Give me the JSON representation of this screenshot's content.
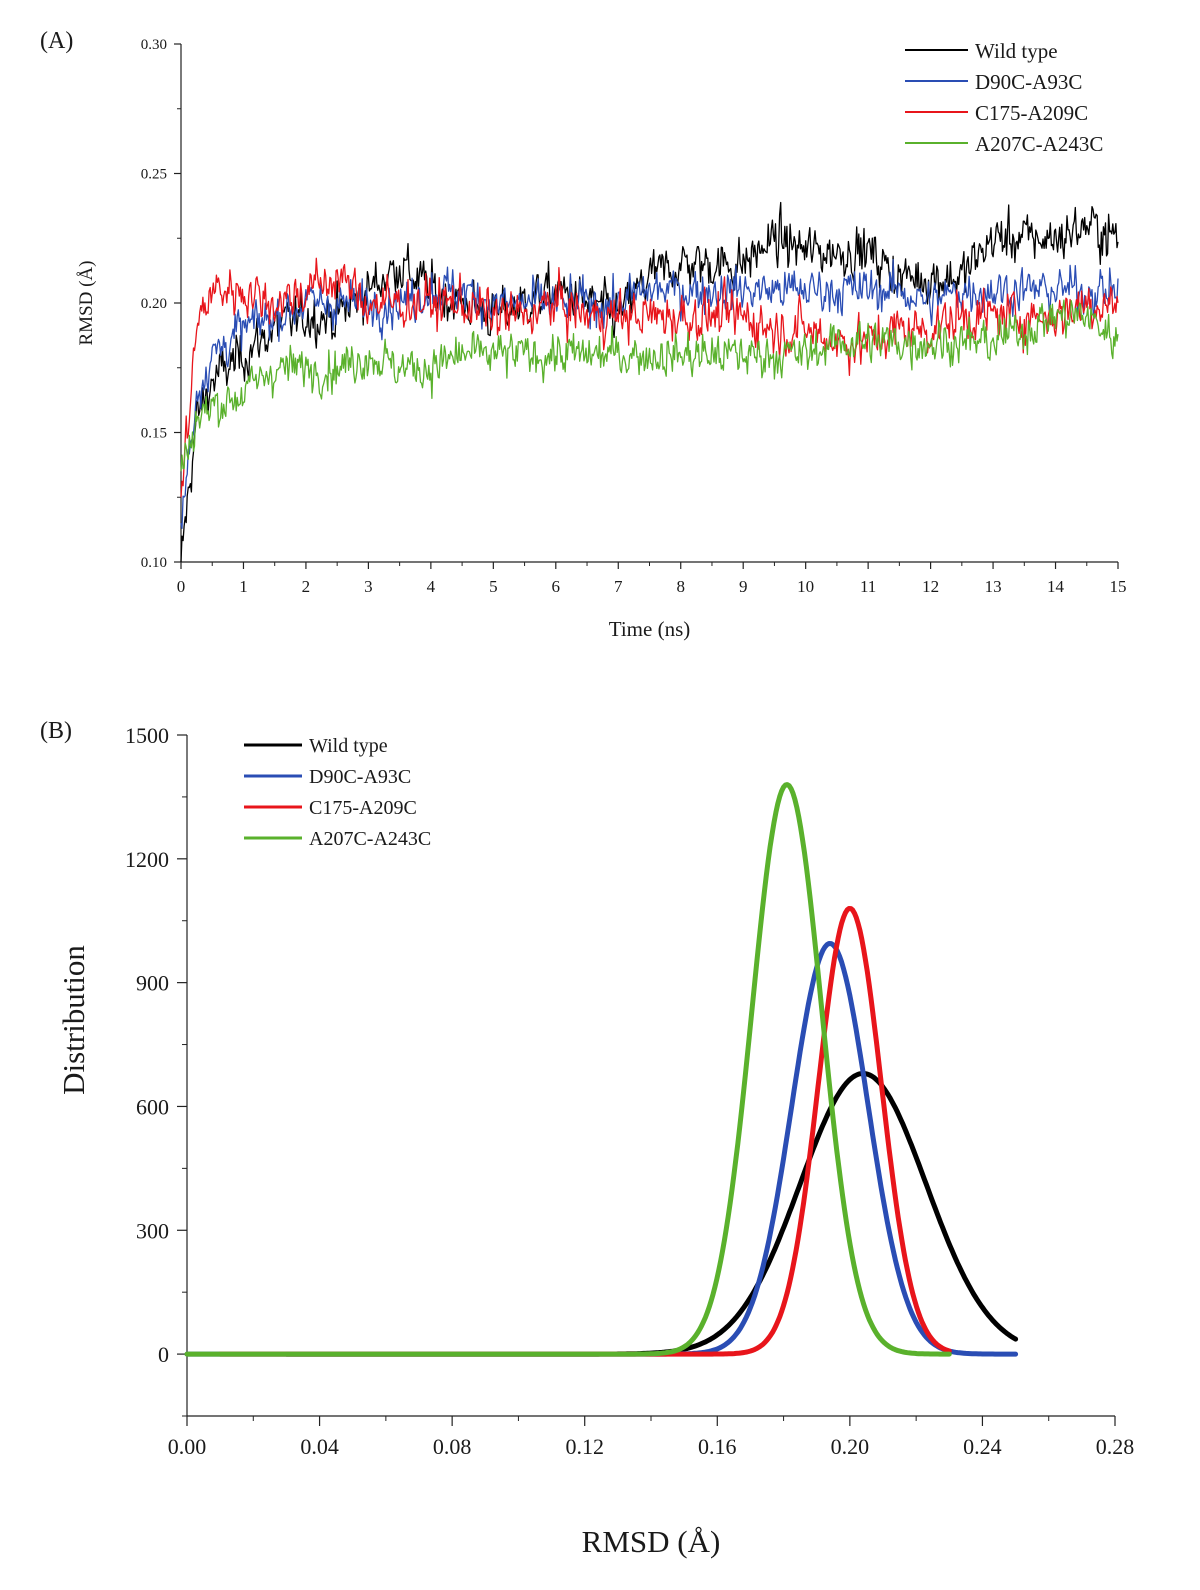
{
  "chart_data": [
    {
      "panel": "(A)",
      "type": "line",
      "title": "",
      "xlabel": "Time (ns)",
      "ylabel": "RMSD (Å)",
      "xlim": [
        0,
        15
      ],
      "ylim": [
        0.1,
        0.3
      ],
      "xticks": [
        0,
        1,
        2,
        3,
        4,
        5,
        6,
        7,
        8,
        9,
        10,
        11,
        12,
        13,
        14,
        15
      ],
      "xtick_labels": [
        "0",
        "1",
        "2",
        "3",
        "4",
        "5",
        "6",
        "7",
        "8",
        "9",
        "10",
        "11",
        "12",
        "13",
        "14",
        "15"
      ],
      "yticks": [
        0.1,
        0.15,
        0.2,
        0.25,
        0.3
      ],
      "ytick_labels": [
        "0.10",
        "0.15",
        "0.20",
        "0.25",
        "0.30"
      ],
      "legend_position": "top-right",
      "grid": false,
      "series": [
        {
          "name": "Wild type",
          "color": "#000000",
          "x": [
            0,
            0.25,
            0.5,
            1,
            1.5,
            2,
            2.5,
            3,
            3.5,
            4,
            4.5,
            5,
            5.5,
            6,
            6.5,
            7,
            7.5,
            8,
            8.5,
            9,
            9.5,
            10,
            10.5,
            11,
            11.5,
            12,
            12.5,
            13,
            13.5,
            14,
            14.5,
            15
          ],
          "values": [
            0.1,
            0.155,
            0.17,
            0.18,
            0.19,
            0.195,
            0.195,
            0.205,
            0.215,
            0.205,
            0.2,
            0.195,
            0.2,
            0.205,
            0.2,
            0.195,
            0.21,
            0.215,
            0.215,
            0.215,
            0.225,
            0.22,
            0.22,
            0.22,
            0.21,
            0.21,
            0.21,
            0.225,
            0.225,
            0.225,
            0.23,
            0.225
          ],
          "noise": 0.009
        },
        {
          "name": "D90C-A93C",
          "color": "#2a4db4",
          "x": [
            0,
            0.25,
            0.5,
            1,
            1.5,
            2,
            2.5,
            3,
            3.5,
            4,
            4.5,
            5,
            5.5,
            6,
            6.5,
            7,
            7.5,
            8,
            8.5,
            9,
            9.5,
            10,
            10.5,
            11,
            11.5,
            12,
            12.5,
            13,
            13.5,
            14,
            14.5,
            15
          ],
          "values": [
            0.115,
            0.165,
            0.18,
            0.19,
            0.195,
            0.2,
            0.2,
            0.2,
            0.2,
            0.205,
            0.205,
            0.2,
            0.2,
            0.2,
            0.2,
            0.2,
            0.205,
            0.205,
            0.205,
            0.205,
            0.205,
            0.205,
            0.205,
            0.205,
            0.205,
            0.2,
            0.205,
            0.205,
            0.205,
            0.205,
            0.205,
            0.205
          ],
          "noise": 0.008
        },
        {
          "name": "C175-A209C",
          "color": "#e8151b",
          "x": [
            0,
            0.25,
            0.5,
            1,
            1.5,
            2,
            2.5,
            3,
            3.5,
            4,
            4.5,
            5,
            5.5,
            6,
            6.5,
            7,
            7.5,
            8,
            8.5,
            9,
            9.5,
            10,
            10.5,
            11,
            11.5,
            12,
            12.5,
            13,
            13.5,
            14,
            14.5,
            15
          ],
          "values": [
            0.125,
            0.19,
            0.205,
            0.205,
            0.2,
            0.205,
            0.21,
            0.2,
            0.2,
            0.2,
            0.2,
            0.195,
            0.195,
            0.2,
            0.195,
            0.195,
            0.195,
            0.195,
            0.195,
            0.195,
            0.19,
            0.19,
            0.185,
            0.185,
            0.19,
            0.19,
            0.195,
            0.195,
            0.195,
            0.195,
            0.2,
            0.2
          ],
          "noise": 0.009
        },
        {
          "name": "A207C-A243C",
          "color": "#5ab12c",
          "x": [
            0,
            0.25,
            0.5,
            1,
            1.5,
            2,
            2.5,
            3,
            3.5,
            4,
            4.5,
            5,
            5.5,
            6,
            6.5,
            7,
            7.5,
            8,
            8.5,
            9,
            9.5,
            10,
            10.5,
            11,
            11.5,
            12,
            12.5,
            13,
            13.5,
            14,
            14.5,
            15
          ],
          "values": [
            0.135,
            0.155,
            0.16,
            0.165,
            0.175,
            0.175,
            0.175,
            0.18,
            0.175,
            0.175,
            0.18,
            0.18,
            0.18,
            0.18,
            0.18,
            0.18,
            0.18,
            0.18,
            0.18,
            0.18,
            0.18,
            0.18,
            0.185,
            0.185,
            0.185,
            0.185,
            0.185,
            0.185,
            0.19,
            0.195,
            0.195,
            0.185
          ],
          "noise": 0.008
        }
      ]
    },
    {
      "panel": "(B)",
      "type": "line",
      "title": "",
      "xlabel": "RMSD (Å)",
      "ylabel": "Distribution",
      "xlim": [
        0.0,
        0.28
      ],
      "ylim": [
        -150,
        1500
      ],
      "xticks": [
        0.0,
        0.04,
        0.08,
        0.12,
        0.16,
        0.2,
        0.24,
        0.28
      ],
      "xtick_labels": [
        "0.00",
        "0.04",
        "0.08",
        "0.12",
        "0.16",
        "0.20",
        "0.24",
        "0.28"
      ],
      "yticks": [
        0,
        300,
        600,
        900,
        1200,
        1500
      ],
      "ytick_labels": [
        "0",
        "300",
        "600",
        "900",
        "1200",
        "1500"
      ],
      "legend_position": "top-left",
      "grid": false,
      "series": [
        {
          "name": "Wild type",
          "color": "#000000",
          "peak_x": 0.204,
          "peak_y": 680,
          "sigma": 0.019,
          "x_start": 0.03,
          "x_end": 0.25
        },
        {
          "name": "D90C-A93C",
          "color": "#2a4db4",
          "peak_x": 0.194,
          "peak_y": 995,
          "sigma": 0.0115,
          "x_start": 0.0,
          "x_end": 0.25
        },
        {
          "name": "C175-A209C",
          "color": "#e8151b",
          "peak_x": 0.2,
          "peak_y": 1080,
          "sigma": 0.0095,
          "x_start": 0.01,
          "x_end": 0.23
        },
        {
          "name": "A207C-A243C",
          "color": "#5ab12c",
          "peak_x": 0.181,
          "peak_y": 1380,
          "sigma": 0.0105,
          "x_start": 0.0,
          "x_end": 0.23
        }
      ]
    }
  ]
}
